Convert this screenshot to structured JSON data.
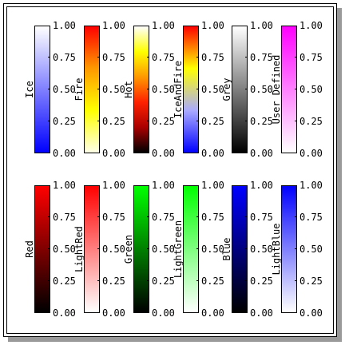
{
  "ticks": [
    "0.00",
    "0.25",
    "0.50",
    "0.75",
    "1.00"
  ],
  "colorbars": [
    {
      "name": "Ice",
      "gradient": [
        "#0000ff",
        "#ffffff"
      ]
    },
    {
      "name": "Fire",
      "gradient": [
        "#ffffe8",
        "#ffff00",
        "#ff9900",
        "#ff0000"
      ]
    },
    {
      "name": "Hot",
      "gradient": [
        "#000000",
        "#aa0000",
        "#ff2200",
        "#ff9900",
        "#ffff00",
        "#ffffff"
      ]
    },
    {
      "name": "IceAndFire",
      "gradient": [
        "#0000ff",
        "#aaaaff",
        "#ffff00",
        "#ff0000"
      ]
    },
    {
      "name": "Grey",
      "gradient": [
        "#000000",
        "#ffffff"
      ]
    },
    {
      "name": "User Defined",
      "gradient": [
        "#ffffff",
        "#ff00ff"
      ]
    },
    {
      "name": "Red",
      "gradient": [
        "#000000",
        "#ff0000"
      ]
    },
    {
      "name": "LightRed",
      "gradient": [
        "#ffffff",
        "#ff0000"
      ]
    },
    {
      "name": "Green",
      "gradient": [
        "#000000",
        "#00ff00"
      ]
    },
    {
      "name": "LightGreen",
      "gradient": [
        "#ffffff",
        "#00ff00"
      ]
    },
    {
      "name": "Blue",
      "gradient": [
        "#000000",
        "#0000ff"
      ]
    },
    {
      "name": "LightBlue",
      "gradient": [
        "#ffffff",
        "#0000ff"
      ]
    }
  ]
}
